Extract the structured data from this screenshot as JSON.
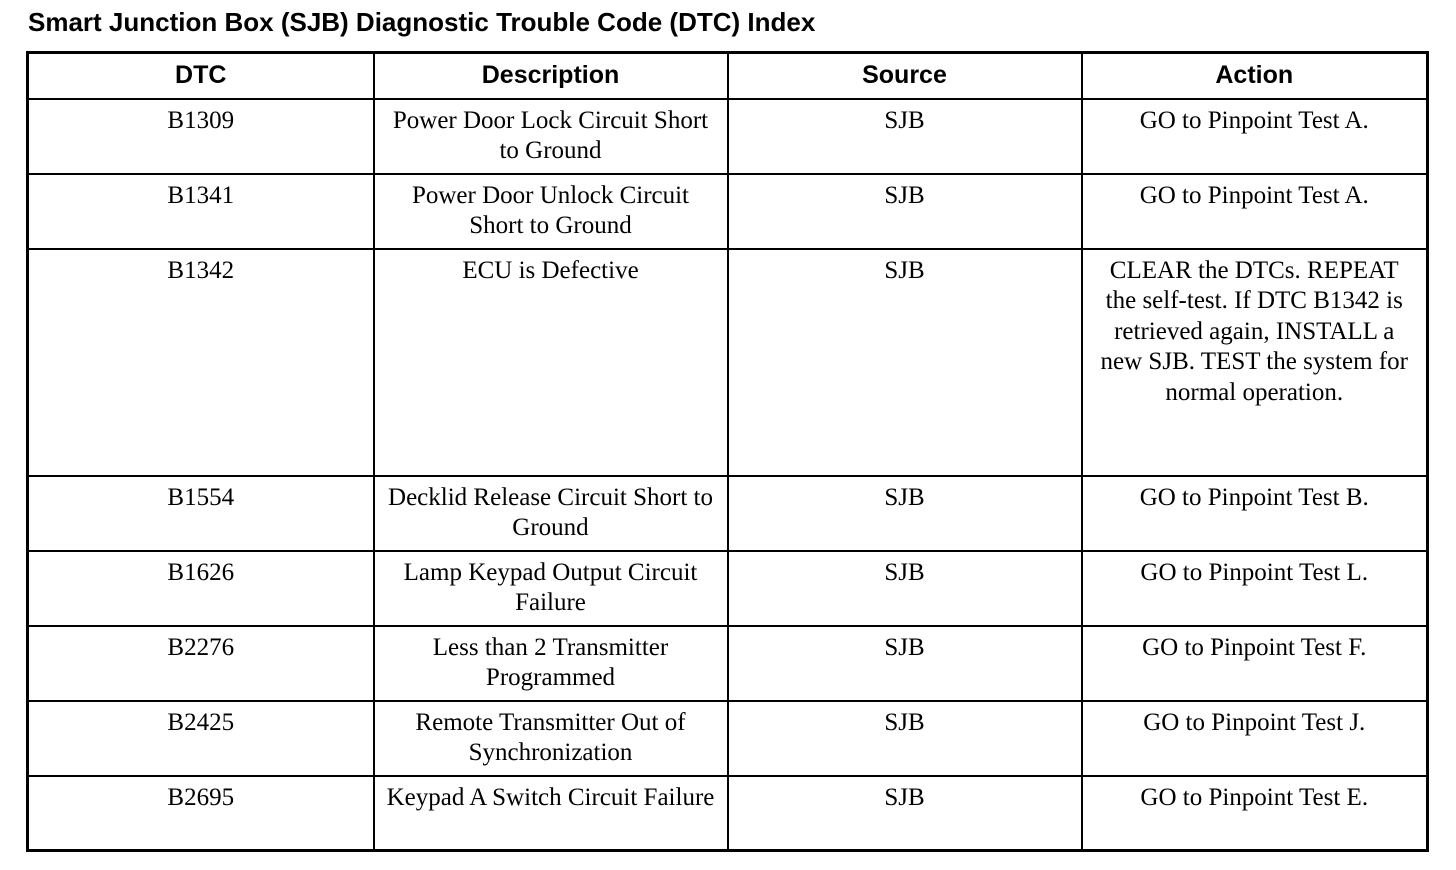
{
  "title": "Smart Junction Box (SJB) Diagnostic Trouble Code (DTC) Index",
  "table": {
    "headers": [
      "DTC",
      "Description",
      "Source",
      "Action"
    ],
    "rows": [
      {
        "dtc": "B1309",
        "description": "Power Door Lock Circuit Short to Ground",
        "source": "SJB",
        "action": "GO to Pinpoint Test A."
      },
      {
        "dtc": "B1341",
        "description": "Power Door Unlock Circuit Short to Ground",
        "source": "SJB",
        "action": "GO to Pinpoint Test A."
      },
      {
        "dtc": "B1342",
        "description": "ECU is Defective",
        "source": "SJB",
        "action": "CLEAR the DTCs. REPEAT the self-test. If DTC B1342 is retrieved again, INSTALL a new SJB. TEST the system for normal operation."
      },
      {
        "dtc": "B1554",
        "description": "Decklid Release Circuit Short to Ground",
        "source": "SJB",
        "action": "GO to Pinpoint Test B."
      },
      {
        "dtc": "B1626",
        "description": "Lamp Keypad Output Circuit Failure",
        "source": "SJB",
        "action": "GO to Pinpoint Test L."
      },
      {
        "dtc": "B2276",
        "description": "Less than 2 Transmitter Programmed",
        "source": "SJB",
        "action": "GO to Pinpoint Test F."
      },
      {
        "dtc": "B2425",
        "description": "Remote Transmitter Out of Synchronization",
        "source": "SJB",
        "action": "GO to Pinpoint Test J."
      },
      {
        "dtc": "B2695",
        "description": "Keypad A Switch Circuit Failure",
        "source": "SJB",
        "action": "GO to Pinpoint Test E."
      }
    ]
  }
}
